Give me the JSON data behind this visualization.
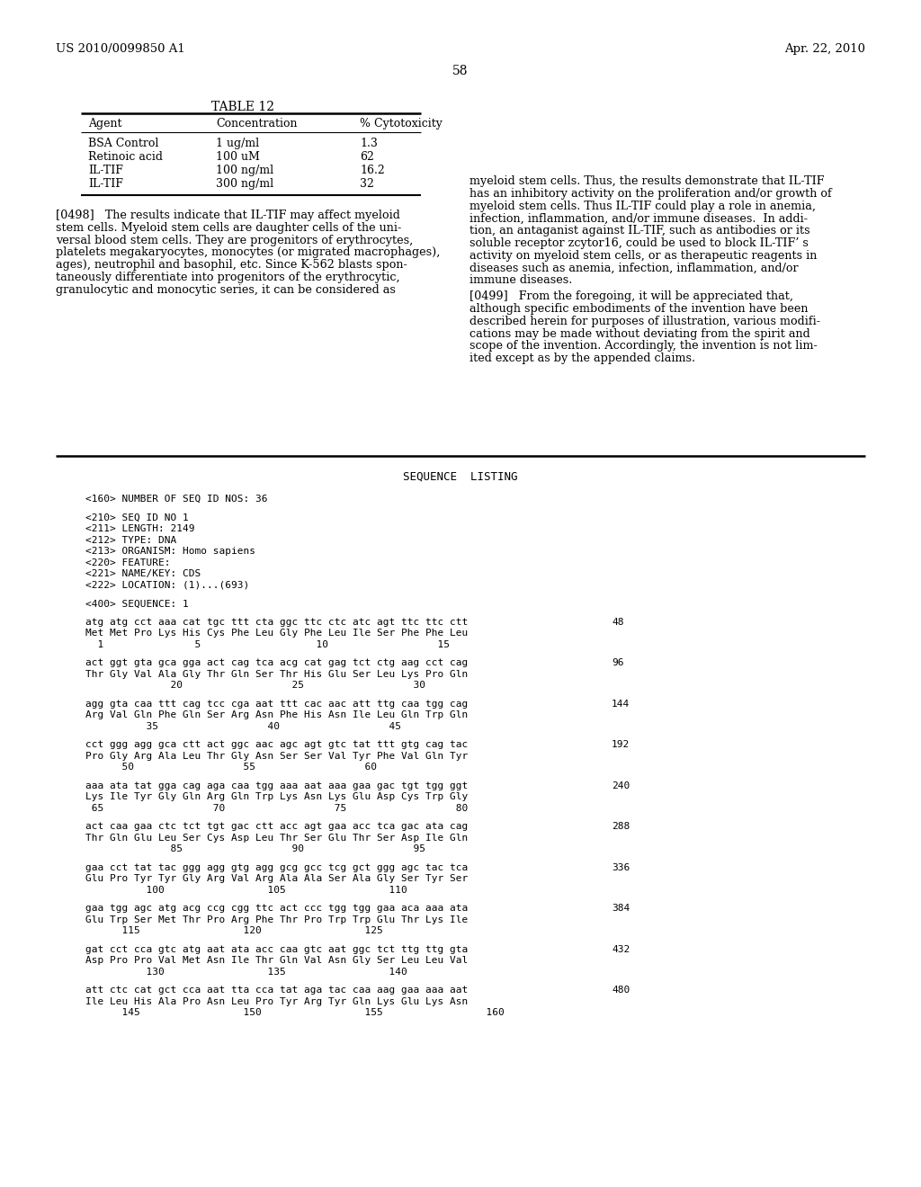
{
  "bg_color": "#ffffff",
  "header_left": "US 2010/0099850 A1",
  "header_right": "Apr. 22, 2010",
  "page_number": "58",
  "table_title": "TABLE 12",
  "table_headers": [
    "Agent",
    "Concentration",
    "% Cytotoxicity"
  ],
  "table_rows": [
    [
      "BSA Control",
      "1 ug/ml",
      "1.3"
    ],
    [
      "Retinoic acid",
      "100 uM",
      "62"
    ],
    [
      "IL-TIF",
      "100 ng/ml",
      "16.2"
    ],
    [
      "IL-TIF",
      "300 ng/ml",
      "32"
    ]
  ],
  "para_left_lines": [
    "[0498]   The results indicate that IL-TIF may affect myeloid",
    "stem cells. Myeloid stem cells are daughter cells of the uni-",
    "versal blood stem cells. They are progenitors of erythrocytes,",
    "platelets megakaryocytes, monocytes (or migrated macrophages),",
    "ages), neutrophil and basophil, etc. Since K-562 blasts spon-",
    "taneously differentiate into progenitors of the erythrocytic,",
    "granulocytic and monocytic series, it can be considered as"
  ],
  "para_right_0498_lines": [
    "myeloid stem cells. Thus, the results demonstrate that IL-TIF",
    "has an inhibitory activity on the proliferation and/or growth of",
    "myeloid stem cells. Thus IL-TIF could play a role in anemia,",
    "infection, inflammation, and/or immune diseases.  In addi-",
    "tion, an antaganist against IL-TIF, such as antibodies or its",
    "soluble receptor zcytor16, could be used to block IL-TIF’ s",
    "activity on myeloid stem cells, or as therapeutic reagents in",
    "diseases such as anemia, infection, inflammation, and/or",
    "immune diseases."
  ],
  "para_right_0499_lines": [
    "[0499]   From the foregoing, it will be appreciated that,",
    "although specific embodiments of the invention have been",
    "described herein for purposes of illustration, various modifi-",
    "cations may be made without deviating from the spirit and",
    "scope of the invention. Accordingly, the invention is not lim-",
    "ited except as by the appended claims."
  ],
  "seq_listing_title": "SEQUENCE  LISTING",
  "seq_meta_lines": [
    "<160> NUMBER OF SEQ ID NOS: 36",
    "",
    "<210> SEQ ID NO 1",
    "<211> LENGTH: 2149",
    "<212> TYPE: DNA",
    "<213> ORGANISM: Homo sapiens",
    "<220> FEATURE:",
    "<221> NAME/KEY: CDS",
    "<222> LOCATION: (1)...(693)",
    "",
    "<400> SEQUENCE: 1"
  ],
  "seq_blocks": [
    {
      "dna": "atg atg cct aaa cat tgc ttt cta ggc ttc ctc atc agt ttc ttc ctt",
      "num": "48",
      "aa": "Met Met Pro Lys His Cys Phe Leu Gly Phe Leu Ile Ser Phe Phe Leu",
      "pos": "  1               5                   10                  15"
    },
    {
      "dna": "act ggt gta gca gga act cag tca acg cat gag tct ctg aag cct cag",
      "num": "96",
      "aa": "Thr Gly Val Ala Gly Thr Gln Ser Thr His Glu Ser Leu Lys Pro Gln",
      "pos": "              20                  25                  30"
    },
    {
      "dna": "agg gta caa ttt cag tcc cga aat ttt cac aac att ttg caa tgg cag",
      "num": "144",
      "aa": "Arg Val Gln Phe Gln Ser Arg Asn Phe His Asn Ile Leu Gln Trp Gln",
      "pos": "          35                  40                  45"
    },
    {
      "dna": "cct ggg agg gca ctt act ggc aac agc agt gtc tat ttt gtg cag tac",
      "num": "192",
      "aa": "Pro Gly Arg Ala Leu Thr Gly Asn Ser Ser Val Tyr Phe Val Gln Tyr",
      "pos": "      50                  55                  60"
    },
    {
      "dna": "aaa ata tat gga cag aga caa tgg aaa aat aaa gaa gac tgt tgg ggt",
      "num": "240",
      "aa": "Lys Ile Tyr Gly Gln Arg Gln Trp Lys Asn Lys Glu Asp Cys Trp Gly",
      "pos": " 65                  70                  75                  80"
    },
    {
      "dna": "act caa gaa ctc tct tgt gac ctt acc agt gaa acc tca gac ata cag",
      "num": "288",
      "aa": "Thr Gln Glu Leu Ser Cys Asp Leu Thr Ser Glu Thr Ser Asp Ile Gln",
      "pos": "              85                  90                  95"
    },
    {
      "dna": "gaa cct tat tac ggg agg gtg agg gcg gcc tcg gct ggg agc tac tca",
      "num": "336",
      "aa": "Glu Pro Tyr Tyr Gly Arg Val Arg Ala Ala Ser Ala Gly Ser Tyr Ser",
      "pos": "          100                 105                 110"
    },
    {
      "dna": "gaa tgg agc atg acg ccg cgg ttc act ccc tgg tgg gaa aca aaa ata",
      "num": "384",
      "aa": "Glu Trp Ser Met Thr Pro Arg Phe Thr Pro Trp Trp Glu Thr Lys Ile",
      "pos": "      115                 120                 125"
    },
    {
      "dna": "gat cct cca gtc atg aat ata acc caa gtc aat ggc tct ttg ttg gta",
      "num": "432",
      "aa": "Asp Pro Pro Val Met Asn Ile Thr Gln Val Asn Gly Ser Leu Leu Val",
      "pos": "          130                 135                 140"
    },
    {
      "dna": "att ctc cat gct cca aat tta cca tat aga tac caa aag gaa aaa aat",
      "num": "480",
      "aa": "Ile Leu His Ala Pro Asn Leu Pro Tyr Arg Tyr Gln Lys Glu Lys Asn",
      "pos": "      145                 150                 155                 160"
    }
  ]
}
